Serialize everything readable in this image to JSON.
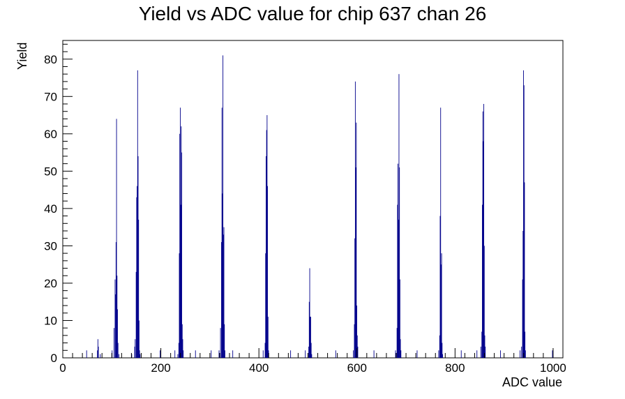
{
  "chart_data": {
    "type": "bar",
    "title": "Yield vs ADC value for chip 637 chan 26",
    "xlabel": "ADC value",
    "ylabel": "Yield",
    "xlim": [
      0,
      1020
    ],
    "ylim": [
      0,
      85
    ],
    "xticks": [
      "0",
      "200",
      "400",
      "600",
      "800",
      "1000"
    ],
    "yticks": [
      "0",
      "10",
      "20",
      "30",
      "40",
      "50",
      "60",
      "70",
      "80"
    ],
    "grid": false,
    "bar_color": "#00008b",
    "bins": [
      {
        "x": 48,
        "y": 2
      },
      {
        "x": 70,
        "y": 2
      },
      {
        "x": 71,
        "y": 5
      },
      {
        "x": 72,
        "y": 3
      },
      {
        "x": 76,
        "y": 1
      },
      {
        "x": 100,
        "y": 2
      },
      {
        "x": 104,
        "y": 8
      },
      {
        "x": 106,
        "y": 21
      },
      {
        "x": 107,
        "y": 17
      },
      {
        "x": 108,
        "y": 31
      },
      {
        "x": 109,
        "y": 64
      },
      {
        "x": 110,
        "y": 22
      },
      {
        "x": 111,
        "y": 13
      },
      {
        "x": 112,
        "y": 4
      },
      {
        "x": 114,
        "y": 1
      },
      {
        "x": 140,
        "y": 1
      },
      {
        "x": 146,
        "y": 3
      },
      {
        "x": 147,
        "y": 5
      },
      {
        "x": 149,
        "y": 23
      },
      {
        "x": 150,
        "y": 43
      },
      {
        "x": 151,
        "y": 46
      },
      {
        "x": 152,
        "y": 77
      },
      {
        "x": 153,
        "y": 54
      },
      {
        "x": 154,
        "y": 37
      },
      {
        "x": 155,
        "y": 10
      },
      {
        "x": 156,
        "y": 2
      },
      {
        "x": 157,
        "y": 1
      },
      {
        "x": 198,
        "y": 2
      },
      {
        "x": 228,
        "y": 2
      },
      {
        "x": 234,
        "y": 1
      },
      {
        "x": 236,
        "y": 4
      },
      {
        "x": 237,
        "y": 28
      },
      {
        "x": 238,
        "y": 60
      },
      {
        "x": 239,
        "y": 67
      },
      {
        "x": 240,
        "y": 41
      },
      {
        "x": 241,
        "y": 62
      },
      {
        "x": 242,
        "y": 55
      },
      {
        "x": 243,
        "y": 9
      },
      {
        "x": 244,
        "y": 5
      },
      {
        "x": 245,
        "y": 2
      },
      {
        "x": 270,
        "y": 2
      },
      {
        "x": 302,
        "y": 2
      },
      {
        "x": 318,
        "y": 2
      },
      {
        "x": 321,
        "y": 8
      },
      {
        "x": 323,
        "y": 31
      },
      {
        "x": 324,
        "y": 67
      },
      {
        "x": 325,
        "y": 44
      },
      {
        "x": 326,
        "y": 81
      },
      {
        "x": 327,
        "y": 33
      },
      {
        "x": 328,
        "y": 35
      },
      {
        "x": 329,
        "y": 9
      },
      {
        "x": 330,
        "y": 2
      },
      {
        "x": 346,
        "y": 2
      },
      {
        "x": 408,
        "y": 2
      },
      {
        "x": 412,
        "y": 4
      },
      {
        "x": 413,
        "y": 28
      },
      {
        "x": 414,
        "y": 54
      },
      {
        "x": 415,
        "y": 61
      },
      {
        "x": 416,
        "y": 65
      },
      {
        "x": 417,
        "y": 46
      },
      {
        "x": 418,
        "y": 11
      },
      {
        "x": 419,
        "y": 2
      },
      {
        "x": 464,
        "y": 2
      },
      {
        "x": 494,
        "y": 2
      },
      {
        "x": 501,
        "y": 3
      },
      {
        "x": 502,
        "y": 15
      },
      {
        "x": 503,
        "y": 24
      },
      {
        "x": 504,
        "y": 11
      },
      {
        "x": 505,
        "y": 11
      },
      {
        "x": 506,
        "y": 4
      },
      {
        "x": 507,
        "y": 1
      },
      {
        "x": 556,
        "y": 2
      },
      {
        "x": 592,
        "y": 2
      },
      {
        "x": 594,
        "y": 9
      },
      {
        "x": 595,
        "y": 32
      },
      {
        "x": 596,
        "y": 74
      },
      {
        "x": 597,
        "y": 51
      },
      {
        "x": 598,
        "y": 63
      },
      {
        "x": 599,
        "y": 14
      },
      {
        "x": 600,
        "y": 6
      },
      {
        "x": 601,
        "y": 3
      },
      {
        "x": 634,
        "y": 2
      },
      {
        "x": 678,
        "y": 2
      },
      {
        "x": 681,
        "y": 8
      },
      {
        "x": 682,
        "y": 41
      },
      {
        "x": 683,
        "y": 52
      },
      {
        "x": 684,
        "y": 37
      },
      {
        "x": 685,
        "y": 76
      },
      {
        "x": 686,
        "y": 51
      },
      {
        "x": 687,
        "y": 21
      },
      {
        "x": 688,
        "y": 5
      },
      {
        "x": 689,
        "y": 2
      },
      {
        "x": 722,
        "y": 2
      },
      {
        "x": 766,
        "y": 2
      },
      {
        "x": 768,
        "y": 6
      },
      {
        "x": 769,
        "y": 38
      },
      {
        "x": 770,
        "y": 67
      },
      {
        "x": 771,
        "y": 25
      },
      {
        "x": 772,
        "y": 28
      },
      {
        "x": 773,
        "y": 4
      },
      {
        "x": 774,
        "y": 1
      },
      {
        "x": 812,
        "y": 2
      },
      {
        "x": 844,
        "y": 2
      },
      {
        "x": 852,
        "y": 3
      },
      {
        "x": 854,
        "y": 7
      },
      {
        "x": 855,
        "y": 41
      },
      {
        "x": 856,
        "y": 66
      },
      {
        "x": 857,
        "y": 58
      },
      {
        "x": 858,
        "y": 68
      },
      {
        "x": 859,
        "y": 30
      },
      {
        "x": 860,
        "y": 6
      },
      {
        "x": 861,
        "y": 3
      },
      {
        "x": 892,
        "y": 2
      },
      {
        "x": 932,
        "y": 2
      },
      {
        "x": 935,
        "y": 3
      },
      {
        "x": 937,
        "y": 21
      },
      {
        "x": 938,
        "y": 34
      },
      {
        "x": 939,
        "y": 77
      },
      {
        "x": 940,
        "y": 73
      },
      {
        "x": 941,
        "y": 47
      },
      {
        "x": 942,
        "y": 7
      },
      {
        "x": 943,
        "y": 2
      },
      {
        "x": 998,
        "y": 2
      }
    ]
  }
}
